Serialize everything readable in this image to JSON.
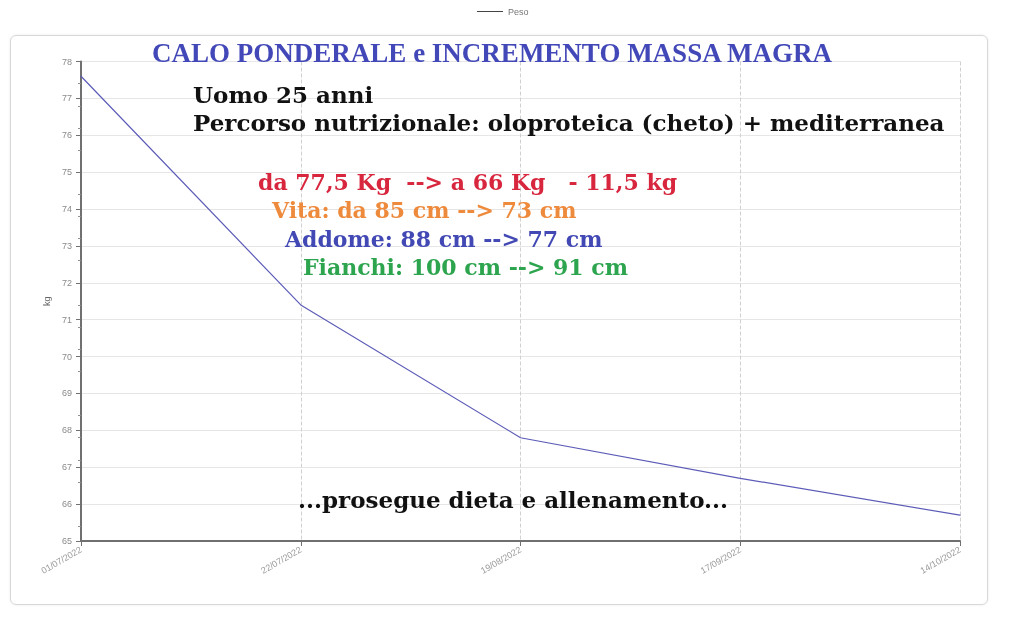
{
  "chart_data": {
    "type": "line",
    "title": "CALO PONDERALE e INCREMENTO MASSA MAGRA",
    "ylabel": "kg",
    "categories": [
      "01/07/2022",
      "22/07/2022",
      "19/08/2022",
      "17/09/2022",
      "14/10/2022"
    ],
    "series": [
      {
        "name": "Peso",
        "color": "#5c5cb8",
        "values": [
          77.6,
          71.4,
          67.8,
          66.7,
          65.7
        ]
      }
    ],
    "ylim": [
      65,
      78
    ],
    "yticks": [
      65,
      66,
      67,
      68,
      69,
      70,
      71,
      72,
      73,
      74,
      75,
      76,
      77,
      78
    ],
    "grid": true,
    "legend": "top",
    "marker": "none",
    "annotations": [
      "Uomo 25 anni",
      "Percorso nutrizionale: oloproteica (cheto) + mediterranea",
      "da 77,5 Kg  --> a 66 Kg   - 11,5 kg",
      "Vita: da 85 cm --> 73 cm",
      "Addome: 88 cm --> 77 cm",
      "Fianchi: 100 cm --> 91 cm",
      "...prosegue dieta e allenamento..."
    ]
  }
}
